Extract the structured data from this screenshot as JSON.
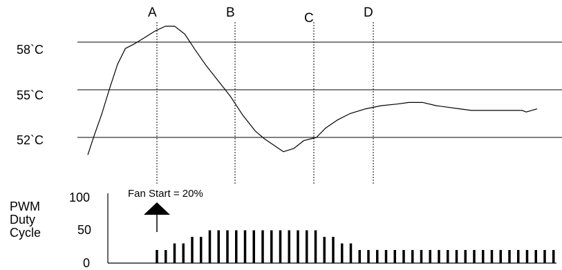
{
  "temperature_levels": [
    "58`C",
    "55`C",
    "52`C"
  ],
  "event_markers": [
    "A",
    "B",
    "C",
    "D"
  ],
  "pwm_axis": {
    "title_lines": [
      "PWM",
      "Duty",
      "Cycle"
    ],
    "ticks": [
      "100",
      "50",
      "0"
    ]
  },
  "annotation": {
    "text": "Fan Start = 20%",
    "value": 20
  },
  "chart_data": {
    "type": "line",
    "temperature": {
      "levels_c": [
        58,
        55,
        52
      ],
      "points": [
        [
          0,
          50.9
        ],
        [
          8,
          52.1
        ],
        [
          18,
          53.5
        ],
        [
          28,
          55.1
        ],
        [
          38,
          56.6
        ],
        [
          48,
          57.6
        ],
        [
          60,
          57.9
        ],
        [
          73,
          58.3
        ],
        [
          86,
          58.7
        ],
        [
          99,
          59.0
        ],
        [
          111,
          59.0
        ],
        [
          124,
          58.5
        ],
        [
          136,
          57.6
        ],
        [
          150,
          56.6
        ],
        [
          166,
          55.6
        ],
        [
          182,
          54.6
        ],
        [
          198,
          53.4
        ],
        [
          214,
          52.4
        ],
        [
          226,
          51.9
        ],
        [
          238,
          51.5
        ],
        [
          250,
          51.1
        ],
        [
          263,
          51.3
        ],
        [
          276,
          51.8
        ],
        [
          292,
          52.0
        ],
        [
          304,
          52.6
        ],
        [
          319,
          53.1
        ],
        [
          335,
          53.5
        ],
        [
          355,
          53.8
        ],
        [
          375,
          54.0
        ],
        [
          395,
          54.1
        ],
        [
          410,
          54.2
        ],
        [
          428,
          54.2
        ],
        [
          445,
          54.0
        ],
        [
          460,
          53.9
        ],
        [
          475,
          53.8
        ],
        [
          490,
          53.7
        ],
        [
          500,
          53.7
        ],
        [
          508,
          53.7
        ],
        [
          519,
          53.7
        ],
        [
          530,
          53.7
        ],
        [
          545,
          53.7
        ],
        [
          555,
          53.7
        ],
        [
          560,
          53.6
        ],
        [
          567,
          53.7
        ],
        [
          574,
          53.8
        ]
      ]
    },
    "pwm_duty_cycle": {
      "ylim": [
        0,
        100
      ],
      "values": [
        20,
        20,
        30,
        30,
        40,
        40,
        50,
        50,
        50,
        50,
        50,
        50,
        50,
        50,
        50,
        50,
        50,
        50,
        50,
        40,
        40,
        30,
        30,
        20,
        20,
        20,
        20,
        20,
        20,
        20,
        20,
        20,
        20,
        20,
        20,
        20,
        20,
        20,
        20,
        20,
        20,
        20,
        20,
        20,
        20,
        20
      ]
    }
  }
}
